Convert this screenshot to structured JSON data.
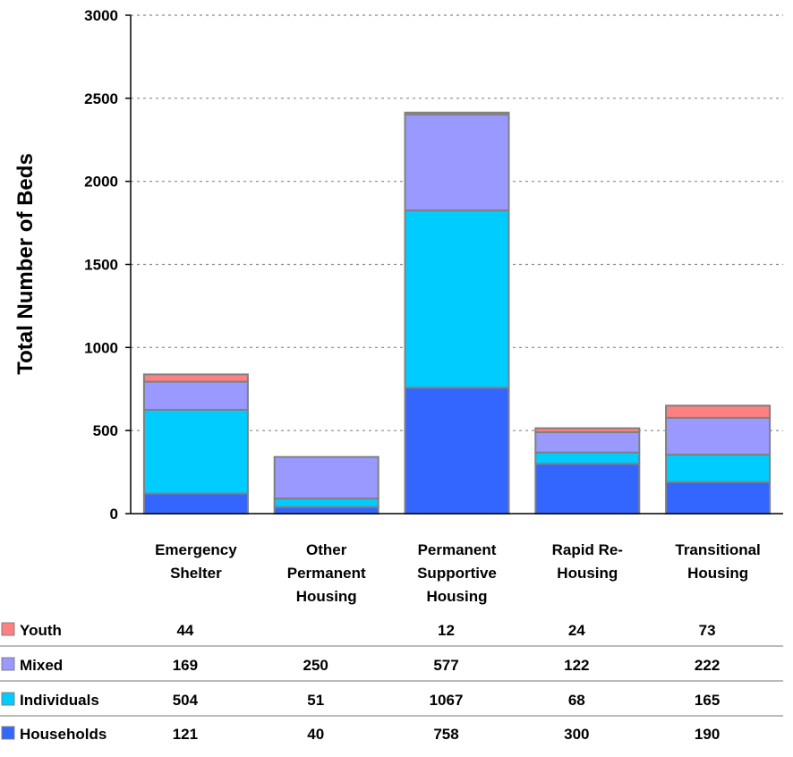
{
  "chart_data": {
    "type": "bar",
    "stacked": true,
    "ylabel": "Total Number of Beds",
    "xlabel": "",
    "ylim": [
      0,
      3000
    ],
    "yticks": [
      0,
      500,
      1000,
      1500,
      2000,
      2500,
      3000
    ],
    "grid": true,
    "categories": [
      [
        "Emergency",
        "Shelter"
      ],
      [
        "Other",
        "Permanent",
        "Housing"
      ],
      [
        "Permanent",
        "Supportive",
        "Housing"
      ],
      [
        "Rapid Re-",
        "Housing"
      ],
      [
        "Transitional",
        "Housing"
      ]
    ],
    "series": [
      {
        "name": "Households",
        "color": "#3366ff",
        "values": [
          121,
          40,
          758,
          300,
          190
        ],
        "labels": [
          "121",
          "40",
          "758",
          "300",
          "190"
        ]
      },
      {
        "name": "Individuals",
        "color": "#00ccff",
        "values": [
          504,
          51,
          1067,
          68,
          165
        ],
        "labels": [
          "504",
          "51",
          "1067",
          "68",
          "165"
        ]
      },
      {
        "name": "Mixed",
        "color": "#9999ff",
        "values": [
          169,
          250,
          577,
          122,
          222
        ],
        "labels": [
          "169",
          "250",
          "577",
          "122",
          "222"
        ]
      },
      {
        "name": "Youth",
        "color": "#ff8080",
        "values": [
          44,
          0,
          12,
          24,
          73
        ],
        "labels": [
          "44",
          "",
          "12",
          "24",
          "73"
        ]
      }
    ]
  }
}
